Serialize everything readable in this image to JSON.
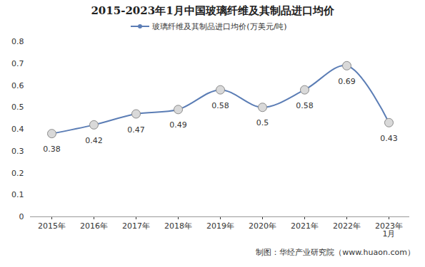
{
  "chart_data": {
    "type": "line",
    "title": "2015-2023年1月中国玻璃纤维及其制品进口均价",
    "caption": "制图：华经产业研究院（www.huaon.com）",
    "categories": [
      "2015年",
      "2016年",
      "2017年",
      "2018年",
      "2019年",
      "2020年",
      "2021年",
      "2022年",
      "2023年\n1月"
    ],
    "series": [
      {
        "name": "玻璃纤维及其制品进口均价(万美元/吨)",
        "color": "#5b7db5",
        "marker": "circle",
        "values": [
          0.38,
          0.42,
          0.47,
          0.49,
          0.58,
          0.5,
          0.58,
          0.69,
          0.43
        ]
      }
    ],
    "ylim": [
      0,
      0.8
    ],
    "yticks": [
      0,
      0.1,
      0.2,
      0.3,
      0.4,
      0.5,
      0.6,
      0.7,
      0.8
    ],
    "grid": false,
    "legend": "top",
    "data_labels": true
  }
}
